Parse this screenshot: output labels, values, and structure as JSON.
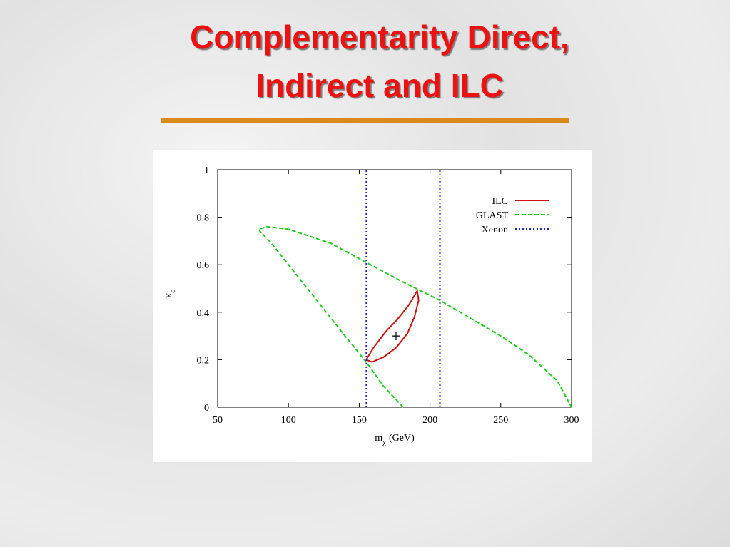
{
  "chart_data": {
    "type": "line",
    "title_lines": [
      "Complementarity Direct,",
      "Indirect and ILC"
    ],
    "xlabel": {
      "main": "m",
      "sub": "χ",
      "unit": "(GeV)"
    },
    "ylabel": {
      "main": "κ",
      "sub": "ε"
    },
    "xlim": [
      50,
      300
    ],
    "xticks": [
      50,
      100,
      150,
      200,
      250,
      300
    ],
    "ylim": [
      0,
      1
    ],
    "yticks": [
      0,
      0.2,
      0.4,
      0.6,
      0.8,
      1
    ],
    "legend": "top-right",
    "series": [
      {
        "name": "ILC",
        "color": "#cc1111",
        "style": "solid",
        "x": [
          155,
          160,
          169,
          177,
          185,
          191,
          192,
          189,
          184,
          176,
          167,
          159,
          155
        ],
        "values": [
          0.2,
          0.25,
          0.32,
          0.37,
          0.43,
          0.49,
          0.45,
          0.38,
          0.31,
          0.25,
          0.21,
          0.19,
          0.2
        ]
      },
      {
        "name": "GLAST",
        "color": "#22cc22",
        "style": "dashed",
        "x": [
          181,
          167,
          155,
          140,
          120,
          100,
          88,
          80,
          79,
          85,
          100,
          130,
          155,
          180,
          207,
          230,
          250,
          270,
          290,
          300
        ],
        "values": [
          0,
          0.09,
          0.19,
          0.3,
          0.45,
          0.6,
          0.69,
          0.74,
          0.75,
          0.76,
          0.75,
          0.69,
          0.61,
          0.53,
          0.45,
          0.37,
          0.3,
          0.22,
          0.11,
          0
        ]
      },
      {
        "name": "Xenon",
        "color": "#2222cc",
        "style": "dotted",
        "vlines": [
          155,
          207
        ]
      }
    ],
    "marker": {
      "x": 176,
      "y": 0.3
    }
  }
}
